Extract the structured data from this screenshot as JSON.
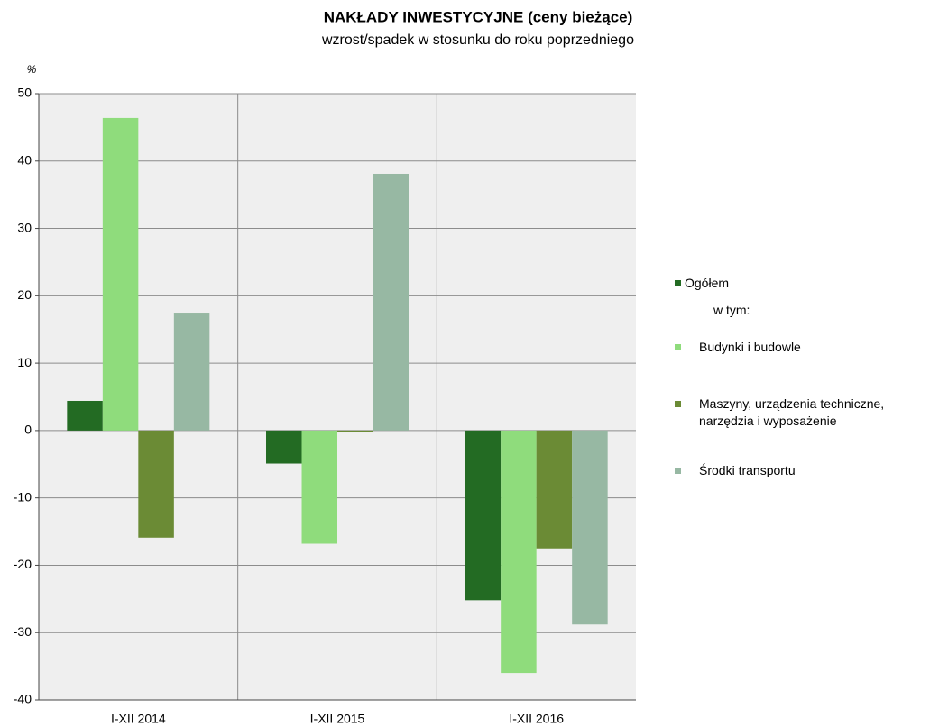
{
  "chart_data": {
    "type": "bar",
    "title": "NAKŁADY  INWESTYCYJNE (ceny bieżące)",
    "subtitle": "wzrost/spadek w stosunku do roku poprzedniego",
    "y_label": "%",
    "legend_note": "w tym:",
    "categories": [
      "I-XII 2014",
      "I-XII 2015",
      "I-XII 2016"
    ],
    "series": [
      {
        "name": "Ogółem",
        "color": "#236b23",
        "values": [
          4.4,
          -4.9,
          -25.2
        ]
      },
      {
        "name": "Budynki i budowle",
        "color": "#8fdc7c",
        "values": [
          46.4,
          -16.8,
          -36.0
        ]
      },
      {
        "name": "Maszyny, urządzenia techniczne, narzędzia i wyposażenie",
        "color": "#6b8b35",
        "values": [
          -15.9,
          -0.2,
          -17.5
        ]
      },
      {
        "name": "Środki transportu",
        "color": "#97b8a3",
        "values": [
          17.5,
          38.1,
          -28.8
        ]
      }
    ],
    "ylim": [
      -40,
      50
    ],
    "yticks": [
      -40,
      -30,
      -20,
      -10,
      0,
      10,
      20,
      30,
      40,
      50
    ],
    "grid": true
  }
}
